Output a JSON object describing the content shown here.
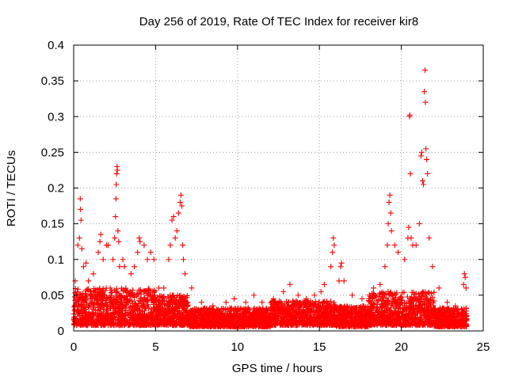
{
  "chart_data": {
    "type": "scatter",
    "title": "Day 256 of 2019, Rate Of TEC Index for receiver kir8",
    "xlabel": "GPS time / hours",
    "ylabel": "ROTI / TECUs",
    "xlim": [
      0,
      25
    ],
    "ylim": [
      0,
      0.4
    ],
    "xticks": [
      0,
      5,
      10,
      15,
      20,
      25
    ],
    "yticks": [
      0,
      0.05,
      0.1,
      0.15,
      0.2,
      0.25,
      0.3,
      0.35,
      0.4
    ],
    "xtick_labels": [
      "0",
      "5",
      "10",
      "15",
      "20",
      "25"
    ],
    "ytick_labels": [
      "0",
      "0.05",
      "0.1",
      "0.15",
      "0.2",
      "0.25",
      "0.3",
      "0.35",
      "0.4"
    ],
    "grid": true,
    "marker": "plus",
    "color": "#ff0000",
    "series": [
      {
        "points": [
          [
            0.1,
            0.07
          ],
          [
            0.25,
            0.12
          ],
          [
            0.35,
            0.13
          ],
          [
            0.4,
            0.185
          ],
          [
            0.42,
            0.17
          ],
          [
            0.45,
            0.155
          ],
          [
            0.5,
            0.115
          ],
          [
            0.6,
            0.09
          ],
          [
            0.75,
            0.095
          ],
          [
            0.9,
            0.07
          ],
          [
            1.2,
            0.08
          ],
          [
            1.5,
            0.11
          ],
          [
            1.6,
            0.125
          ],
          [
            1.65,
            0.135
          ],
          [
            1.8,
            0.1
          ],
          [
            2.0,
            0.12
          ],
          [
            2.1,
            0.12
          ],
          [
            2.4,
            0.1
          ],
          [
            2.5,
            0.13
          ],
          [
            2.55,
            0.16
          ],
          [
            2.58,
            0.185
          ],
          [
            2.6,
            0.205
          ],
          [
            2.62,
            0.22
          ],
          [
            2.65,
            0.23
          ],
          [
            2.67,
            0.225
          ],
          [
            2.7,
            0.14
          ],
          [
            2.75,
            0.125
          ],
          [
            2.8,
            0.09
          ],
          [
            3.0,
            0.1
          ],
          [
            3.1,
            0.09
          ],
          [
            3.5,
            0.08
          ],
          [
            3.7,
            0.09
          ],
          [
            3.9,
            0.11
          ],
          [
            4.0,
            0.13
          ],
          [
            4.05,
            0.125
          ],
          [
            4.3,
            0.12
          ],
          [
            4.5,
            0.1
          ],
          [
            4.7,
            0.11
          ],
          [
            4.9,
            0.1
          ],
          [
            5.2,
            0.06
          ],
          [
            5.5,
            0.06
          ],
          [
            5.8,
            0.1
          ],
          [
            5.9,
            0.12
          ],
          [
            6.0,
            0.155
          ],
          [
            6.1,
            0.16
          ],
          [
            6.2,
            0.13
          ],
          [
            6.3,
            0.14
          ],
          [
            6.4,
            0.165
          ],
          [
            6.5,
            0.18
          ],
          [
            6.55,
            0.19
          ],
          [
            6.6,
            0.175
          ],
          [
            6.65,
            0.12
          ],
          [
            6.7,
            0.1
          ],
          [
            6.8,
            0.08
          ],
          [
            7.2,
            0.06
          ],
          [
            7.8,
            0.04
          ],
          [
            8.5,
            0.035
          ],
          [
            9.3,
            0.04
          ],
          [
            9.8,
            0.045
          ],
          [
            10.5,
            0.04
          ],
          [
            11.0,
            0.05
          ],
          [
            11.5,
            0.04
          ],
          [
            12.2,
            0.045
          ],
          [
            12.8,
            0.055
          ],
          [
            13.2,
            0.065
          ],
          [
            13.7,
            0.05
          ],
          [
            14.2,
            0.045
          ],
          [
            14.7,
            0.05
          ],
          [
            15.1,
            0.055
          ],
          [
            15.3,
            0.065
          ],
          [
            15.7,
            0.09
          ],
          [
            15.8,
            0.11
          ],
          [
            15.85,
            0.13
          ],
          [
            15.9,
            0.12
          ],
          [
            16.2,
            0.07
          ],
          [
            16.3,
            0.09
          ],
          [
            16.35,
            0.095
          ],
          [
            16.5,
            0.07
          ],
          [
            17.0,
            0.05
          ],
          [
            17.6,
            0.045
          ],
          [
            18.3,
            0.06
          ],
          [
            18.7,
            0.065
          ],
          [
            19.0,
            0.09
          ],
          [
            19.15,
            0.12
          ],
          [
            19.2,
            0.15
          ],
          [
            19.25,
            0.18
          ],
          [
            19.3,
            0.19
          ],
          [
            19.35,
            0.165
          ],
          [
            19.4,
            0.14
          ],
          [
            19.6,
            0.12
          ],
          [
            19.8,
            0.11
          ],
          [
            20.2,
            0.1
          ],
          [
            20.4,
            0.13
          ],
          [
            20.45,
            0.145
          ],
          [
            20.5,
            0.3
          ],
          [
            20.52,
            0.302
          ],
          [
            20.55,
            0.22
          ],
          [
            20.6,
            0.13
          ],
          [
            20.7,
            0.12
          ],
          [
            20.9,
            0.12
          ],
          [
            21.1,
            0.15
          ],
          [
            21.2,
            0.245
          ],
          [
            21.25,
            0.25
          ],
          [
            21.3,
            0.21
          ],
          [
            21.35,
            0.205
          ],
          [
            21.4,
            0.335
          ],
          [
            21.45,
            0.365
          ],
          [
            21.47,
            0.32
          ],
          [
            21.5,
            0.255
          ],
          [
            21.55,
            0.24
          ],
          [
            21.6,
            0.22
          ],
          [
            21.7,
            0.13
          ],
          [
            21.9,
            0.09
          ],
          [
            22.3,
            0.06
          ],
          [
            22.8,
            0.04
          ],
          [
            23.3,
            0.035
          ],
          [
            23.8,
            0.065
          ],
          [
            23.85,
            0.08
          ],
          [
            23.9,
            0.075
          ],
          [
            23.95,
            0.06
          ]
        ]
      }
    ],
    "dense_band": {
      "x_range": [
        0,
        24
      ],
      "segments": [
        [
          0,
          2.5,
          0.008,
          0.06
        ],
        [
          2.5,
          5,
          0.008,
          0.06
        ],
        [
          5,
          7,
          0.008,
          0.05
        ],
        [
          7,
          12,
          0.006,
          0.032
        ],
        [
          12,
          16,
          0.008,
          0.042
        ],
        [
          16,
          18,
          0.006,
          0.035
        ],
        [
          18,
          22,
          0.008,
          0.055
        ],
        [
          22,
          24,
          0.006,
          0.032
        ]
      ]
    }
  }
}
